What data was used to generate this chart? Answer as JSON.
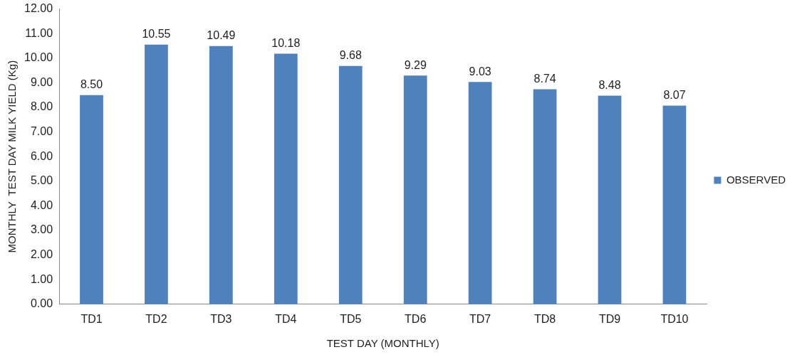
{
  "chart_data": {
    "type": "bar",
    "xlabel": "TEST DAY (MONTHLY)",
    "ylabel": "MONTHLY  TEST DAY MILK YIELD (Kg)",
    "categories": [
      "TD1",
      "TD2",
      "TD3",
      "TD4",
      "TD5",
      "TD6",
      "TD7",
      "TD8",
      "TD9",
      "TD10"
    ],
    "series": [
      {
        "name": "OBSERVED",
        "color": "#4f81bd",
        "values": [
          8.5,
          10.55,
          10.49,
          10.18,
          9.68,
          9.29,
          9.03,
          8.74,
          8.48,
          8.07
        ],
        "value_labels": [
          "8.50",
          "10.55",
          "10.49",
          "10.18",
          "9.68",
          "9.29",
          "9.03",
          "8.74",
          "8.48",
          "8.07"
        ]
      }
    ],
    "ylim": [
      0,
      12
    ],
    "yticks": [
      {
        "value": 0,
        "label": "0.00"
      },
      {
        "value": 1,
        "label": "1.00"
      },
      {
        "value": 2,
        "label": "2.00"
      },
      {
        "value": 3,
        "label": "3.00"
      },
      {
        "value": 4,
        "label": "4.00"
      },
      {
        "value": 5,
        "label": "5.00"
      },
      {
        "value": 6,
        "label": "6.00"
      },
      {
        "value": 7,
        "label": "7.00"
      },
      {
        "value": 8,
        "label": "8.00"
      },
      {
        "value": 9,
        "label": "9.00"
      },
      {
        "value": 10,
        "label": "10.00"
      },
      {
        "value": 11,
        "label": "11.00"
      },
      {
        "value": 12,
        "label": "12.00"
      }
    ],
    "grid": false,
    "legend": "right"
  }
}
